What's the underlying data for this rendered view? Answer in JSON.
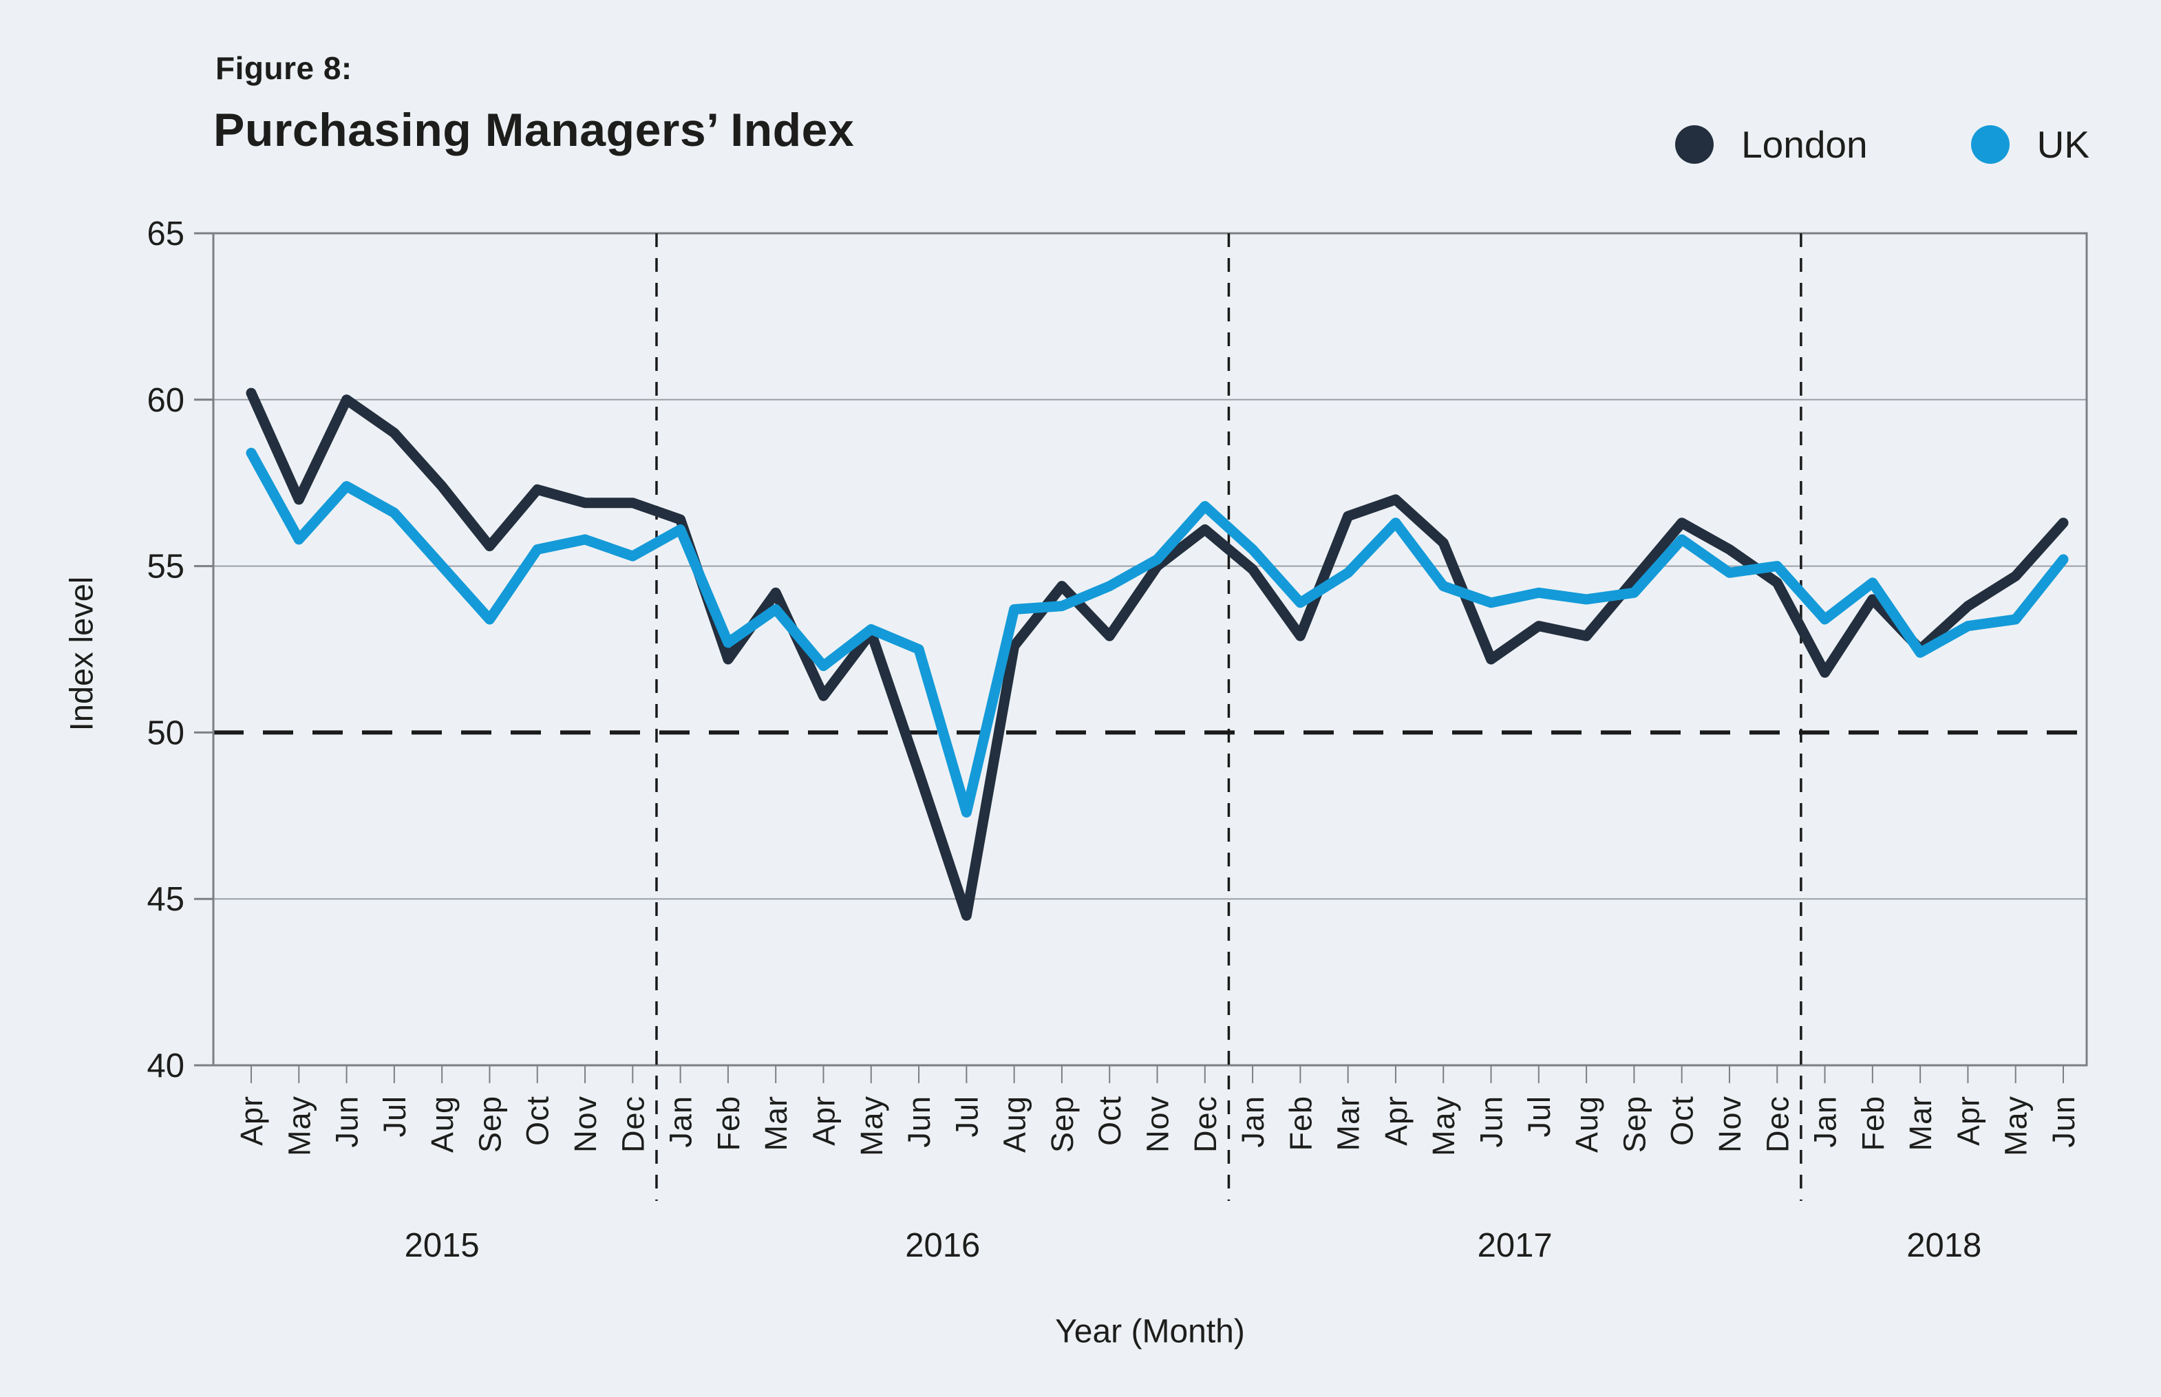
{
  "figure": {
    "label": "Figure 8:",
    "title": "Purchasing Managers’ Index"
  },
  "legend": {
    "items": [
      {
        "label": "London",
        "color": "#232f3e"
      },
      {
        "label": "UK",
        "color": "#149ad8"
      }
    ]
  },
  "axes": {
    "y_title": "Index level",
    "x_title": "Year (Month)"
  },
  "chart_data": {
    "type": "line",
    "title": "Purchasing Managers’ Index",
    "ylabel": "Index level",
    "xlabel": "Year (Month)",
    "ylim": [
      40,
      65
    ],
    "yticks": [
      65,
      60,
      55,
      50,
      45,
      40
    ],
    "reference_line_y": 50,
    "grid": "horizontal",
    "legend_position": "top-right",
    "months": [
      "Apr",
      "May",
      "Jun",
      "Jul",
      "Aug",
      "Sep",
      "Oct",
      "Nov",
      "Dec",
      "Jan",
      "Feb",
      "Mar",
      "Apr",
      "May",
      "Jun",
      "Jul",
      "Aug",
      "Sep",
      "Oct",
      "Nov",
      "Dec",
      "Jan",
      "Feb",
      "Mar",
      "Apr",
      "May",
      "Jun",
      "Jul",
      "Aug",
      "Sep",
      "Oct",
      "Nov",
      "Dec",
      "Jan",
      "Feb",
      "Mar",
      "Apr",
      "May",
      "Jun"
    ],
    "years": [
      {
        "label": "2015",
        "from": 0,
        "to": 8
      },
      {
        "label": "2016",
        "from": 9,
        "to": 20
      },
      {
        "label": "2017",
        "from": 21,
        "to": 32
      },
      {
        "label": "2018",
        "from": 33,
        "to": 38
      }
    ],
    "series": [
      {
        "name": "London",
        "color": "#232f3e",
        "values": [
          60.2,
          57.0,
          60.0,
          59.0,
          57.4,
          55.6,
          57.3,
          56.9,
          56.9,
          56.4,
          52.2,
          54.2,
          51.1,
          53.0,
          48.8,
          44.5,
          52.6,
          54.4,
          52.9,
          55.0,
          56.1,
          54.9,
          52.9,
          56.5,
          57.0,
          55.7,
          52.2,
          53.2,
          52.9,
          54.6,
          56.3,
          55.5,
          54.5,
          51.8,
          54.0,
          52.5,
          53.8,
          54.7,
          56.3
        ]
      },
      {
        "name": "UK",
        "color": "#149ad8",
        "values": [
          58.4,
          55.8,
          57.4,
          56.6,
          55.0,
          53.4,
          55.5,
          55.8,
          55.3,
          56.1,
          52.7,
          53.7,
          52.0,
          53.1,
          52.5,
          47.6,
          53.7,
          53.8,
          54.4,
          55.2,
          56.8,
          55.5,
          53.9,
          54.8,
          56.3,
          54.4,
          53.9,
          54.2,
          54.0,
          54.2,
          55.8,
          54.8,
          55.0,
          53.4,
          54.5,
          52.4,
          53.2,
          53.4,
          55.2
        ]
      }
    ]
  }
}
